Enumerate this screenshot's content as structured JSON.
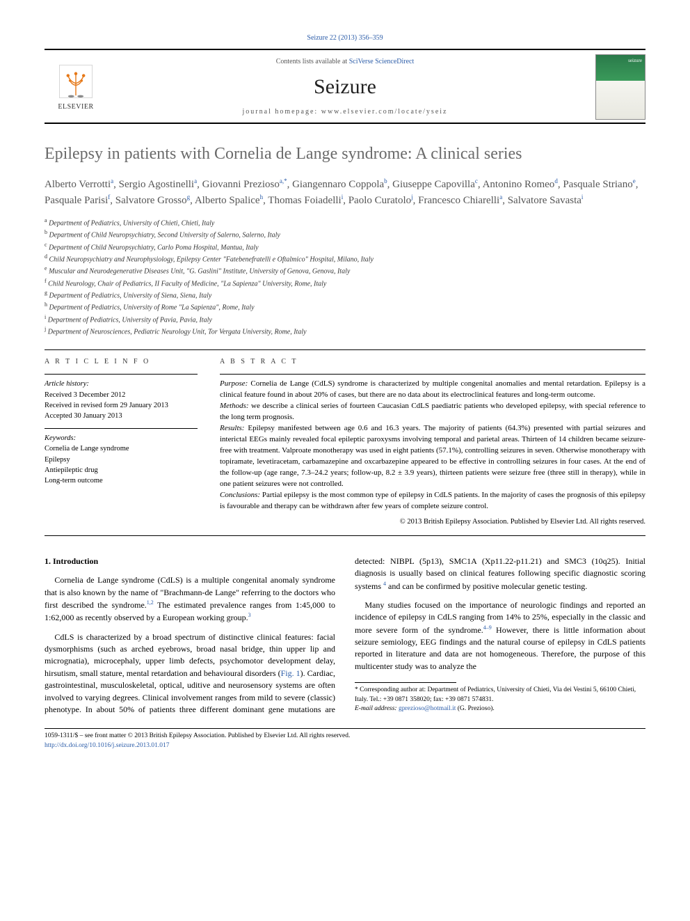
{
  "citation": "Seizure 22 (2013) 356–359",
  "masthead": {
    "contents_prefix": "Contents lists available at ",
    "contents_link": "SciVerse ScienceDirect",
    "journal_title": "Seizure",
    "homepage_prefix": "journal homepage: ",
    "homepage_url": "www.elsevier.com/locate/yseiz",
    "publisher_label": "ELSEVIER"
  },
  "article": {
    "title": "Epilepsy in patients with Cornelia de Lange syndrome: A clinical series"
  },
  "authors_html": "Alberto Verrotti<sup>a</sup>, Sergio Agostinelli<sup>a</sup>, Giovanni Prezioso<sup>a,*</sup>, Giangennaro Coppola<sup>b</sup>, Giuseppe Capovilla<sup>c</sup>, Antonino Romeo<sup>d</sup>, Pasquale Striano<sup>e</sup>, Pasquale Parisi<sup>f</sup>, Salvatore Grosso<sup>g</sup>, Alberto Spalice<sup>h</sup>, Thomas Foiadelli<sup>i</sup>, Paolo Curatolo<sup>j</sup>, Francesco Chiarelli<sup>a</sup>, Salvatore Savasta<sup>i</sup>",
  "affiliations": [
    {
      "sup": "a",
      "text": "Department of Pediatrics, University of Chieti, Chieti, Italy"
    },
    {
      "sup": "b",
      "text": "Department of Child Neuropsychiatry, Second University of Salerno, Salerno, Italy"
    },
    {
      "sup": "c",
      "text": "Department of Child Neuropsychiatry, Carlo Poma Hospital, Mantua, Italy"
    },
    {
      "sup": "d",
      "text": "Child Neuropsychiatry and Neurophysiology, Epilepsy Center \"Fatebenefratelli e Oftalmico\" Hospital, Milano, Italy"
    },
    {
      "sup": "e",
      "text": "Muscular and Neurodegenerative Diseases Unit, \"G. Gaslini\" Institute, University of Genova, Genova, Italy"
    },
    {
      "sup": "f",
      "text": "Child Neurology, Chair of Pediatrics, II Faculty of Medicine, \"La Sapienza\" University, Rome, Italy"
    },
    {
      "sup": "g",
      "text": "Department of Pediatrics, University of Siena, Siena, Italy"
    },
    {
      "sup": "h",
      "text": "Department of Pediatrics, University of Rome \"La Sapienza\", Rome, Italy"
    },
    {
      "sup": "i",
      "text": "Department of Pediatrics, University of Pavia, Pavia, Italy"
    },
    {
      "sup": "j",
      "text": "Department of Neurosciences, Pediatric Neurology Unit, Tor Vergata University, Rome, Italy"
    }
  ],
  "article_info": {
    "heading": "A R T I C L E   I N F O",
    "history_label": "Article history:",
    "history_lines": [
      "Received 3 December 2012",
      "Received in revised form 29 January 2013",
      "Accepted 30 January 2013"
    ],
    "keywords_label": "Keywords:",
    "keywords": [
      "Cornelia de Lange syndrome",
      "Epilepsy",
      "Antiepileptic drug",
      "Long-term outcome"
    ]
  },
  "abstract": {
    "heading": "A B S T R A C T",
    "purpose_label": "Purpose:",
    "purpose": "Cornelia de Lange (CdLS) syndrome is characterized by multiple congenital anomalies and mental retardation. Epilepsy is a clinical feature found in about 20% of cases, but there are no data about its electroclinical features and long-term outcome.",
    "methods_label": "Methods:",
    "methods": "we describe a clinical series of fourteen Caucasian CdLS paediatric patients who developed epilepsy, with special reference to the long term prognosis.",
    "results_label": "Results:",
    "results": "Epilepsy manifested between age 0.6 and 16.3 years. The majority of patients (64.3%) presented with partial seizures and interictal EEGs mainly revealed focal epileptic paroxysms involving temporal and parietal areas. Thirteen of 14 children became seizure-free with treatment. Valproate monotherapy was used in eight patients (57.1%), controlling seizures in seven. Otherwise monotherapy with topiramate, levetiracetam, carbamazepine and oxcarbazepine appeared to be effective in controlling seizures in four cases. At the end of the follow-up (age range, 7.3–24.2 years; follow-up, 8.2 ± 3.9 years), thirteen patients were seizure free (three still in therapy), while in one patient seizures were not controlled.",
    "conclusions_label": "Conclusions:",
    "conclusions": "Partial epilepsy is the most common type of epilepsy in CdLS patients. In the majority of cases the prognosis of this epilepsy is favourable and therapy can be withdrawn after few years of complete seizure control.",
    "copyright": "© 2013 British Epilepsy Association. Published by Elsevier Ltd. All rights reserved."
  },
  "body": {
    "section1_heading": "1.  Introduction",
    "p1": "Cornelia de Lange syndrome (CdLS) is a multiple congenital anomaly syndrome that is also known by the name of \"Brachmann-de Lange\" referring to the doctors who first described the syndrome.",
    "p1_ref": "1,2",
    "p1b": " The estimated prevalence ranges from 1:45,000 to 1:62,000 as recently observed by a European working group.",
    "p1b_ref": "3",
    "p2": "CdLS is characterized by a broad spectrum of distinctive clinical features: facial dysmorphisms (such as arched eyebrows, broad nasal bridge, thin upper lip and micrognatia), microcephaly, upper limb defects, psychomotor development delay, hirsutism, small stature, mental retardation and behavioural disorders (",
    "p2_figref": "Fig. 1",
    "p2b": "). Cardiac, gastrointestinal, musculoskeletal, optical, uditive and neurosensory systems are often involved to varying degrees. Clinical involvement ranges from mild to severe (classic) phenotype. In about 50% of patients three different dominant gene mutations are detected: NIBPL (5p13), SMC1A (Xp11.22-p11.21) and SMC3 (10q25). Initial diagnosis is usually based on clinical features following specific diagnostic scoring systems ",
    "p2b_ref": "4",
    "p2c": " and can be confirmed by positive molecular genetic testing.",
    "p3": "Many studies focused on the importance of neurologic findings and reported an incidence of epilepsy in CdLS ranging from 14% to 25%, especially in the classic and more severe form of the syndrome.",
    "p3_ref": "4–9",
    "p3b": " However, there is little information about seizure semiology, EEG findings and the natural course of epilepsy in CdLS patients reported in literature and data are not homogeneous. Therefore, the purpose of this multicenter study was to analyze the"
  },
  "footnotes": {
    "corr_label": "* Corresponding author at: ",
    "corr_text": "Department of Pediatrics, University of Chieti, Via dei Vestini 5, 66100 Chieti, Italy. Tel.: +39 0871 358020; fax: +39 0871 574831.",
    "email_label": "E-mail address:",
    "email": "gprezioso@hotmail.it",
    "email_owner": "(G. Prezioso)."
  },
  "page_footer": {
    "line1": "1059-1311/$ – see front matter © 2013 British Epilepsy Association. Published by Elsevier Ltd. All rights reserved.",
    "doi": "http://dx.doi.org/10.1016/j.seizure.2013.01.017"
  },
  "colors": {
    "link": "#2b5ca8",
    "title_gray": "#6a6a6a",
    "body": "#000000",
    "elsevier_orange": "#e67817"
  }
}
